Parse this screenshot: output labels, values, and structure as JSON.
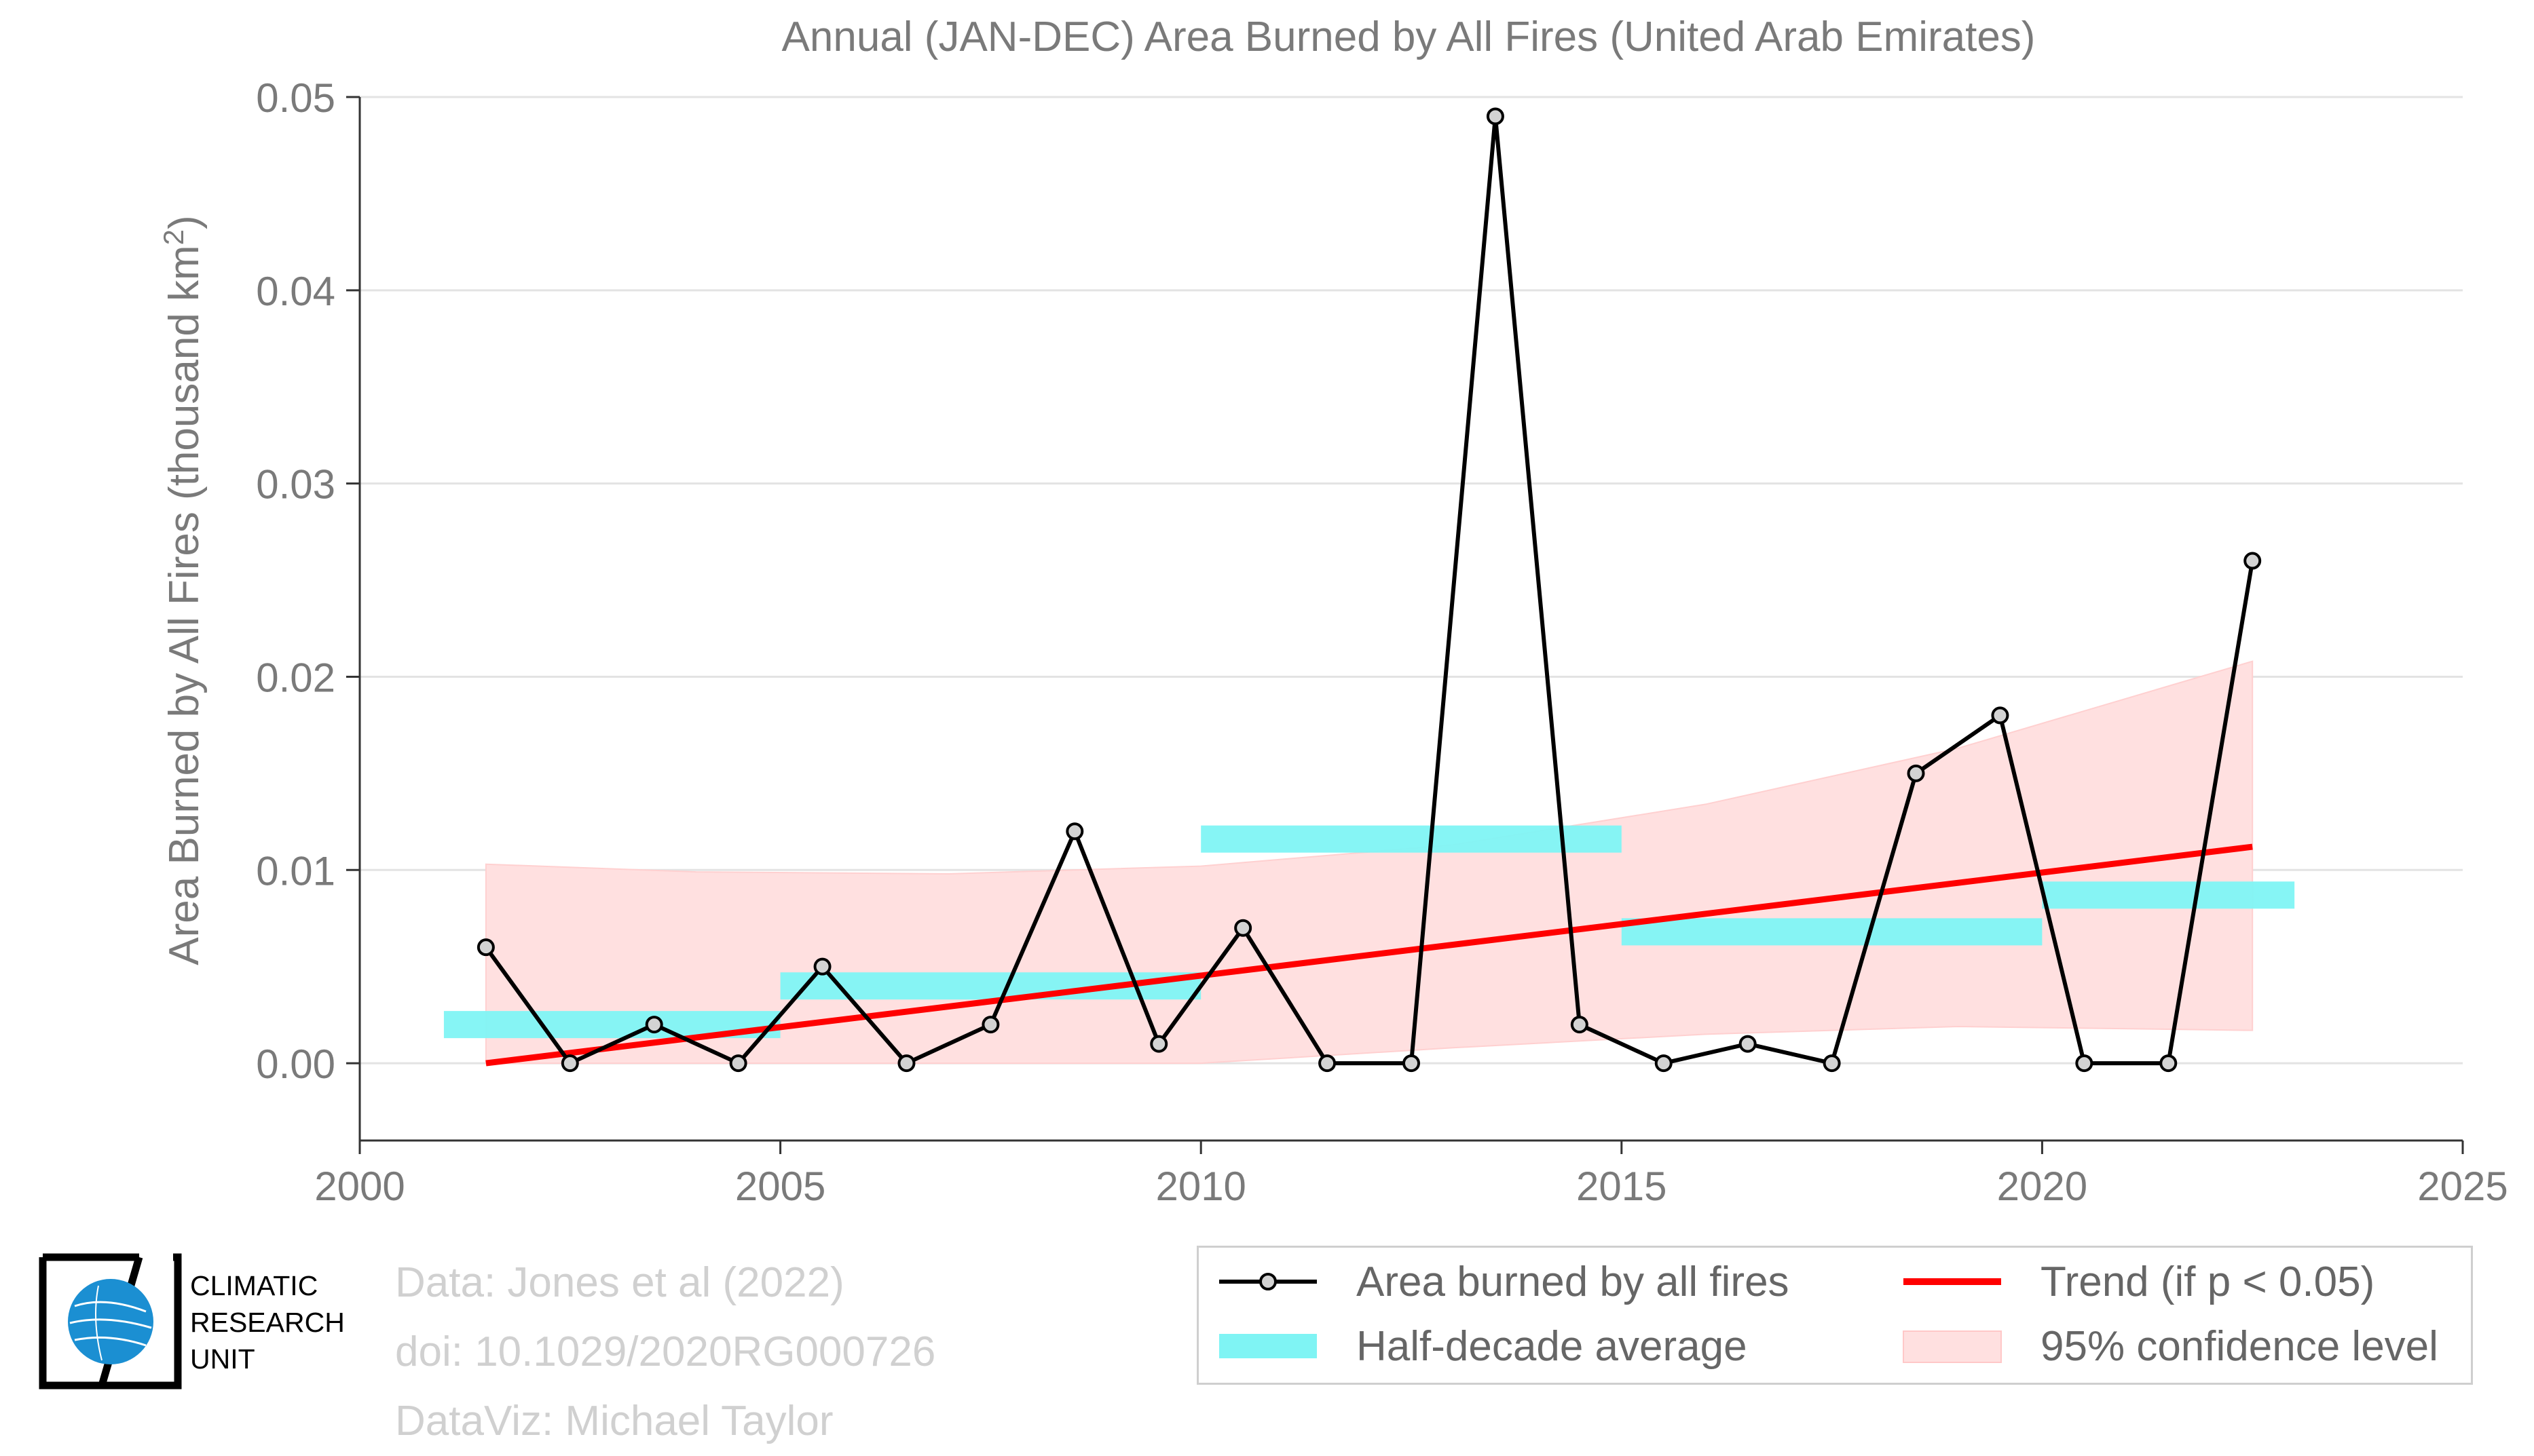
{
  "chart_data": {
    "type": "line",
    "title": "Annual (JAN-DEC) Area Burned by All Fires (United Arab Emirates)",
    "ylabel": "Area Burned by All Fires (thousand km²)",
    "xlabel": "",
    "xlim": [
      2000,
      2025
    ],
    "ylim": [
      -0.004,
      0.05
    ],
    "xticks": [
      2000,
      2005,
      2010,
      2015,
      2020,
      2025
    ],
    "yticks": [
      0.0,
      0.01,
      0.02,
      0.03,
      0.04,
      0.05
    ],
    "ytick_labels": [
      "0.00",
      "0.01",
      "0.02",
      "0.03",
      "0.04",
      "0.05"
    ],
    "grid": "horizontal",
    "series": [
      {
        "name": "Area burned by all fires",
        "type": "line-markers",
        "color": "#000000",
        "x": [
          2001.5,
          2002.5,
          2003.5,
          2004.5,
          2005.5,
          2006.5,
          2007.5,
          2008.5,
          2009.5,
          2010.5,
          2011.5,
          2012.5,
          2013.5,
          2014.5,
          2015.5,
          2016.5,
          2017.5,
          2018.5,
          2019.5,
          2020.5,
          2021.5,
          2022.5
        ],
        "values": [
          0.006,
          0.0,
          0.002,
          0.0,
          0.005,
          0.0,
          0.002,
          0.012,
          0.001,
          0.007,
          0.0,
          0.0,
          0.049,
          0.002,
          0.0,
          0.001,
          0.0,
          0.015,
          0.018,
          0.0,
          0.0,
          0.026
        ]
      },
      {
        "name": "Half-decade average",
        "type": "segments",
        "color": "#7ff4f4",
        "segments": [
          {
            "x0": 2001,
            "x1": 2005,
            "value": 0.002
          },
          {
            "x0": 2005,
            "x1": 2010,
            "value": 0.004
          },
          {
            "x0": 2010,
            "x1": 2015,
            "value": 0.0116
          },
          {
            "x0": 2015,
            "x1": 2020,
            "value": 0.0068
          },
          {
            "x0": 2020,
            "x1": 2023,
            "value": 0.0087
          }
        ]
      },
      {
        "name": "Trend (if p < 0.05)",
        "type": "line",
        "color": "#ff0000",
        "x": [
          2001.5,
          2022.5
        ],
        "values": [
          0.0,
          0.0112
        ]
      },
      {
        "name": "95% confidence level",
        "type": "band",
        "color": "#ffe0e0",
        "x": [
          2001.5,
          2004,
          2007,
          2010,
          2013,
          2016,
          2019,
          2022.5
        ],
        "upper": [
          0.0103,
          0.0099,
          0.0098,
          0.0102,
          0.0113,
          0.0134,
          0.0163,
          0.0208
        ],
        "lower": [
          0.0,
          0.0,
          0.0,
          0.0,
          0.0008,
          0.0015,
          0.0019,
          0.0017
        ]
      }
    ]
  },
  "credits": {
    "line1": "Data: Jones et al (2022)",
    "line2": "doi: 10.1029/2020RG000726",
    "line3": "DataViz: Michael Taylor"
  },
  "logo": {
    "line1": "CLIMATIC",
    "line2": "RESEARCH",
    "line3": "UNIT"
  },
  "legend": {
    "item1": "Area burned by all fires",
    "item2": "Half-decade average",
    "item3": "Trend (if p < 0.05)",
    "item4": "95% confidence level"
  }
}
